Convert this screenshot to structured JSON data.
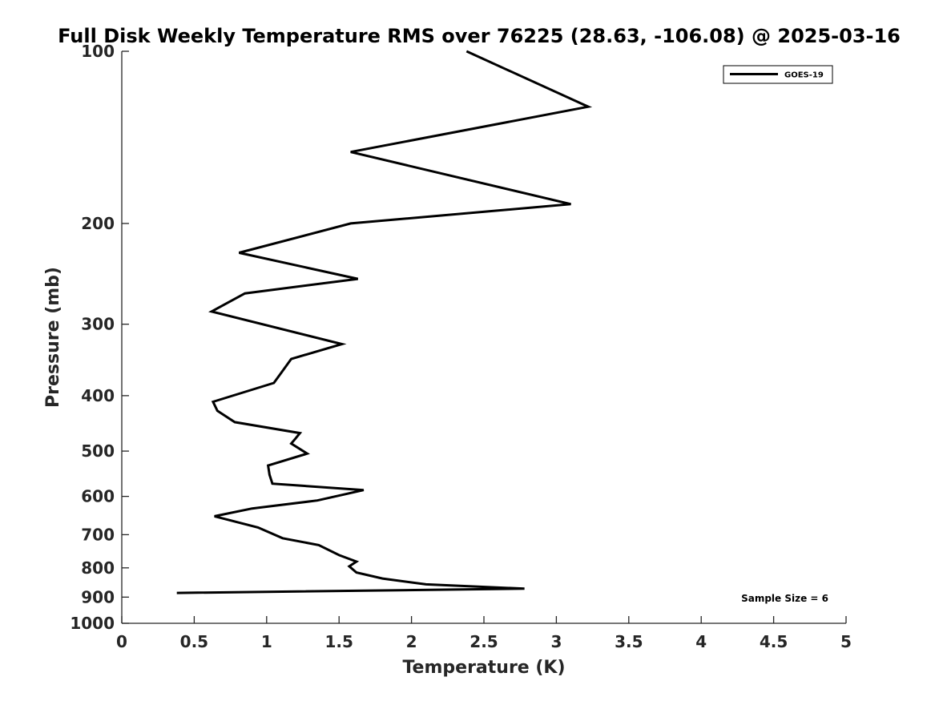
{
  "chart_data": {
    "type": "line",
    "title": "Full Disk Weekly Temperature RMS over 76225 (28.63, -106.08) @ 2025-03-16",
    "xlabel": "Temperature (K)",
    "ylabel": "Pressure (mb)",
    "xlim": [
      0,
      5
    ],
    "ylim": [
      100,
      1000
    ],
    "y_scale": "log",
    "y_reversed": true,
    "grid": false,
    "legend_position": "top-right",
    "x_ticks": [
      "0",
      "0.5",
      "1",
      "1.5",
      "2",
      "2.5",
      "3",
      "3.5",
      "4",
      "4.5",
      "5"
    ],
    "y_ticks": [
      "100",
      "200",
      "300",
      "400",
      "500",
      "600",
      "700",
      "800",
      "900",
      "1000"
    ],
    "series": [
      {
        "name": "GOES-19",
        "color": "#000000",
        "points": [
          [
            2.38,
            100
          ],
          [
            3.22,
            125
          ],
          [
            1.58,
            150
          ],
          [
            3.1,
            185
          ],
          [
            1.58,
            200
          ],
          [
            0.81,
            225
          ],
          [
            1.63,
            250
          ],
          [
            0.85,
            265
          ],
          [
            0.62,
            285
          ],
          [
            1.52,
            325
          ],
          [
            1.17,
            345
          ],
          [
            1.1,
            365
          ],
          [
            1.05,
            380
          ],
          [
            0.63,
            410
          ],
          [
            0.66,
            425
          ],
          [
            0.78,
            445
          ],
          [
            1.23,
            465
          ],
          [
            1.2,
            475
          ],
          [
            1.17,
            485
          ],
          [
            1.28,
            505
          ],
          [
            1.01,
            530
          ],
          [
            1.02,
            550
          ],
          [
            1.04,
            570
          ],
          [
            1.67,
            585
          ],
          [
            1.35,
            610
          ],
          [
            0.9,
            630
          ],
          [
            0.64,
            650
          ],
          [
            0.94,
            680
          ],
          [
            1.11,
            710
          ],
          [
            1.36,
            730
          ],
          [
            1.5,
            760
          ],
          [
            1.62,
            780
          ],
          [
            1.57,
            795
          ],
          [
            1.62,
            815
          ],
          [
            1.8,
            835
          ],
          [
            2.1,
            855
          ],
          [
            2.78,
            870
          ],
          [
            0.38,
            885
          ]
        ]
      }
    ],
    "annotations": [
      "Sample Size = 6"
    ]
  }
}
